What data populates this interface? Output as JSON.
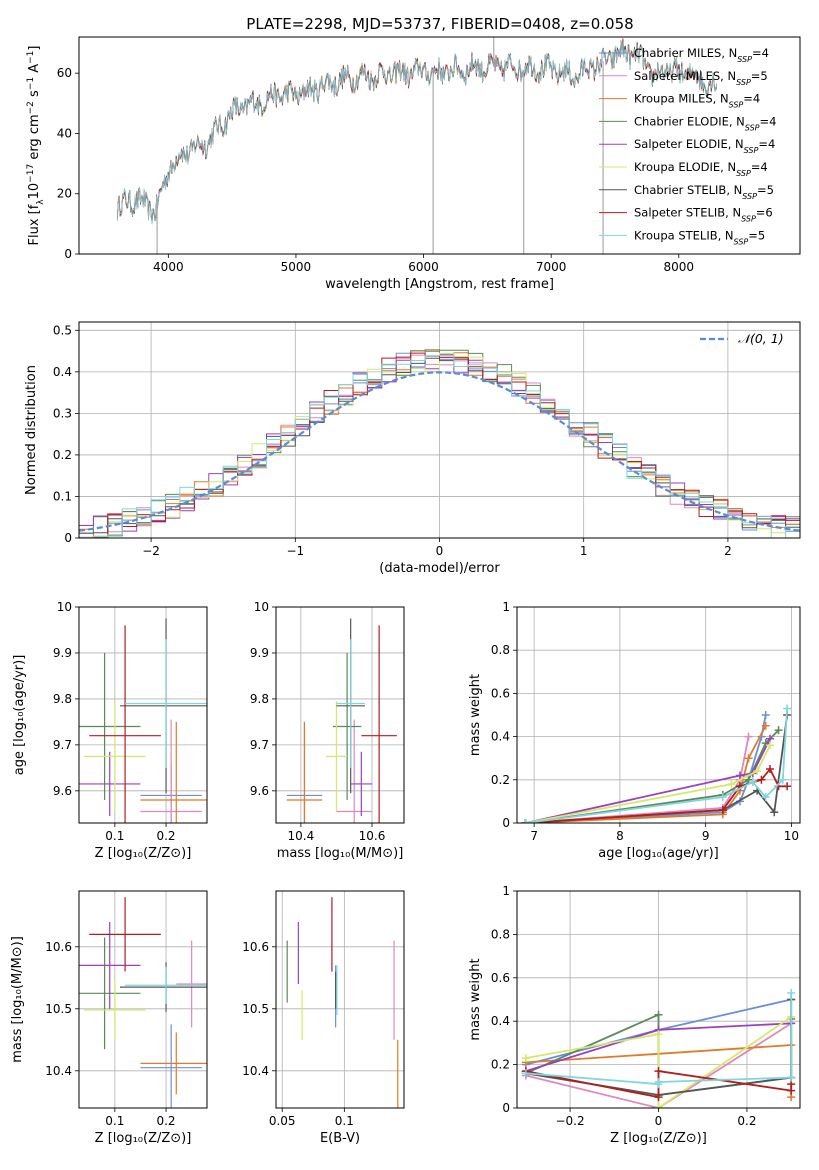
{
  "figure_title": "PLATE=2298, MJD=53737, FIBERID=0408, z=0.058",
  "colors": {
    "chabrier_miles": "#6b8fd6",
    "salpeter_miles": "#e088bd",
    "kroupa_miles": "#e07b2b",
    "chabrier_elodie": "#5a8a5a",
    "salpeter_elodie": "#9b3fc0",
    "kroupa_elodie": "#d4e86a",
    "chabrier_stelib": "#555555",
    "salpeter_stelib": "#b21e1e",
    "kroupa_stelib": "#7fd6e0",
    "normal": "#5b8ad8",
    "grid": "#b0b0b0"
  },
  "chart_data": [
    {
      "id": "spectrum",
      "type": "line",
      "xlabel": "wavelength [Angstrom, rest frame]",
      "ylabel": "Flux [f_λ10^{-17} erg cm^{-2} s^{-1} A^{-1}]",
      "xlim": [
        3300,
        8950
      ],
      "ylim": [
        0,
        72
      ],
      "xticks": [
        4000,
        5000,
        6000,
        7000,
        8000
      ],
      "yticks": [
        0,
        20,
        40,
        60
      ],
      "legend_position": "right",
      "legend": [
        {
          "base": "Chabrier MILES, N",
          "sub": "SSP",
          "tail": "=4",
          "color": "#6b8fd6"
        },
        {
          "base": "Salpeter MILES, N",
          "sub": "SSP",
          "tail": "=5",
          "color": "#e088bd"
        },
        {
          "base": "Kroupa MILES, N",
          "sub": "SSP",
          "tail": "=4",
          "color": "#e07b2b"
        },
        {
          "base": "Chabrier ELODIE, N",
          "sub": "SSP",
          "tail": "=4",
          "color": "#5a8a5a"
        },
        {
          "base": "Salpeter ELODIE, N",
          "sub": "SSP",
          "tail": "=4",
          "color": "#9b3fc0"
        },
        {
          "base": "Kroupa ELODIE, N",
          "sub": "SSP",
          "tail": "=4",
          "color": "#d4e86a"
        },
        {
          "base": "Chabrier STELIB, N",
          "sub": "SSP",
          "tail": "=5",
          "color": "#555555"
        },
        {
          "base": "Salpeter STELIB, N",
          "sub": "SSP",
          "tail": "=6",
          "color": "#b21e1e"
        },
        {
          "base": "Kroupa STELIB, N",
          "sub": "SSP",
          "tail": "=5",
          "color": "#7fd6e0"
        }
      ],
      "continuum": {
        "x": [
          3600,
          3700,
          3800,
          3900,
          4000,
          4100,
          4200,
          4300,
          4400,
          4500,
          4600,
          4700,
          4800,
          4900,
          5000,
          5100,
          5200,
          5300,
          5400,
          5500,
          5600,
          5700,
          5800,
          5900,
          6000,
          6100,
          6200,
          6300,
          6400,
          6500,
          6600,
          6700,
          6800,
          6900,
          7000,
          7100,
          7200,
          7300,
          7400,
          7500,
          7600,
          7700,
          7800,
          7900,
          8000,
          8100,
          8200,
          8300
        ],
        "y": [
          15,
          18,
          17,
          14,
          28,
          33,
          35,
          37,
          42,
          47,
          49,
          50,
          52,
          53,
          53,
          54,
          56,
          57,
          58,
          59,
          59,
          60,
          60,
          60,
          61,
          60,
          61,
          61,
          62,
          62,
          62,
          62,
          62,
          62,
          61,
          60,
          59,
          62,
          63,
          66,
          67,
          65,
          59,
          61,
          60,
          60,
          57,
          56
        ]
      },
      "emission_features": [
        {
          "x": 3912,
          "y0": 0,
          "y1": 18
        },
        {
          "x": 6075,
          "y0": 0,
          "y1": 61
        },
        {
          "x": 6550,
          "y0": 62,
          "y1": 75
        },
        {
          "x": 6785,
          "y0": 0,
          "y1": 61
        },
        {
          "x": 7407,
          "y0": 0,
          "y1": 64
        }
      ]
    },
    {
      "id": "residuals",
      "type": "histogram",
      "xlabel": "(data-model)/error",
      "ylabel": "Normed distribution",
      "xlim": [
        -2.5,
        2.5
      ],
      "ylim": [
        0,
        0.52
      ],
      "xticks": [
        -2,
        -1,
        0,
        1,
        2
      ],
      "yticks": [
        0.0,
        0.1,
        0.2,
        0.3,
        0.4,
        0.5
      ],
      "bin_width": 0.1,
      "bin_start": -2.5,
      "legend": "𝒩(0, 1)",
      "legend_position": "top-right",
      "normal_curve": {
        "mu": 0,
        "sigma": 1
      }
    },
    {
      "id": "age_vs_z",
      "type": "scatter",
      "xlabel": "Z [log₁₀(Z/Z⊙)]",
      "ylabel": "age  [log₁₀(age/yr)]",
      "xlim": [
        0.03,
        0.28
      ],
      "ylim": [
        9.53,
        10.0
      ],
      "xticks": [
        0.1,
        0.2
      ],
      "yticks": [
        9.6,
        9.7,
        9.8,
        9.9,
        10.0
      ],
      "points": [
        {
          "x": 0.21,
          "y": 9.59,
          "xerr": 0.06,
          "yerr": 0.07,
          "color": "#6b8fd6"
        },
        {
          "x": 0.21,
          "y": 9.555,
          "xerr": 0.06,
          "yerr": 0.2,
          "color": "#e088bd"
        },
        {
          "x": 0.22,
          "y": 9.58,
          "xerr": 0.07,
          "yerr": 0.17,
          "color": "#e07b2b"
        },
        {
          "x": 0.08,
          "y": 9.74,
          "xerr": 0.07,
          "yerr": 0.16,
          "color": "#5a8a5a"
        },
        {
          "x": 0.09,
          "y": 9.615,
          "xerr": 0.06,
          "yerr": 0.07,
          "color": "#9b3fc0"
        },
        {
          "x": 0.1,
          "y": 9.675,
          "xerr": 0.06,
          "yerr": 0.12,
          "color": "#d4e86a"
        },
        {
          "x": 0.2,
          "y": 9.785,
          "xerr": 0.09,
          "yerr": 0.19,
          "color": "#555555"
        },
        {
          "x": 0.12,
          "y": 9.72,
          "xerr": 0.07,
          "yerr": 0.24,
          "color": "#b21e1e"
        },
        {
          "x": 0.2,
          "y": 9.79,
          "xerr": 0.08,
          "yerr": 0.14,
          "color": "#7fd6e0"
        }
      ]
    },
    {
      "id": "age_vs_mass",
      "type": "scatter",
      "xlabel": "mass [log₁₀(M/M⊙)]",
      "ylabel": "",
      "xlim": [
        10.33,
        10.69
      ],
      "ylim": [
        9.53,
        10.0
      ],
      "xticks": [
        10.4,
        10.6
      ],
      "yticks": [
        9.6,
        9.7,
        9.8,
        9.9,
        10.0
      ],
      "points": [
        {
          "x": 10.41,
          "y": 9.59,
          "xerr": 0.05,
          "yerr": 0.16,
          "color": "#6b8fd6"
        },
        {
          "x": 10.55,
          "y": 9.555,
          "xerr": 0.05,
          "yerr": 0.2,
          "color": "#e088bd"
        },
        {
          "x": 10.41,
          "y": 9.58,
          "xerr": 0.05,
          "yerr": 0.17,
          "color": "#e07b2b"
        },
        {
          "x": 10.53,
          "y": 9.74,
          "xerr": 0.04,
          "yerr": 0.16,
          "color": "#5a8a5a"
        },
        {
          "x": 10.57,
          "y": 9.615,
          "xerr": 0.03,
          "yerr": 0.07,
          "color": "#9b3fc0"
        },
        {
          "x": 10.5,
          "y": 9.675,
          "xerr": 0.03,
          "yerr": 0.12,
          "color": "#d4e86a"
        },
        {
          "x": 10.54,
          "y": 9.785,
          "xerr": 0.04,
          "yerr": 0.19,
          "color": "#555555"
        },
        {
          "x": 10.62,
          "y": 9.72,
          "xerr": 0.05,
          "yerr": 0.24,
          "color": "#b21e1e"
        },
        {
          "x": 10.54,
          "y": 9.79,
          "xerr": 0.04,
          "yerr": 0.14,
          "color": "#7fd6e0"
        }
      ]
    },
    {
      "id": "mass_weight_vs_age",
      "type": "line",
      "xlabel": "age  [log₁₀(age/yr)]",
      "ylabel": "mass weight",
      "xlim": [
        6.8,
        10.1
      ],
      "ylim": [
        0,
        1.0
      ],
      "xticks": [
        7,
        8,
        9,
        10
      ],
      "yticks": [
        0.0,
        0.2,
        0.4,
        0.6,
        0.8,
        1.0
      ],
      "series": [
        {
          "color": "#6b8fd6",
          "x": [
            6.9,
            9.2,
            9.4,
            9.5,
            9.65,
            9.7
          ],
          "y": [
            0.0,
            0.05,
            0.1,
            0.2,
            0.4,
            0.5
          ]
        },
        {
          "color": "#e088bd",
          "x": [
            6.9,
            9.2,
            9.4,
            9.5
          ],
          "y": [
            0.0,
            0.07,
            0.2,
            0.4
          ]
        },
        {
          "color": "#e07b2b",
          "x": [
            6.9,
            9.2,
            9.4,
            9.5,
            9.7
          ],
          "y": [
            0.0,
            0.04,
            0.15,
            0.3,
            0.45
          ]
        },
        {
          "color": "#5a8a5a",
          "x": [
            6.9,
            9.2,
            9.5,
            9.7,
            9.85
          ],
          "y": [
            0.0,
            0.13,
            0.2,
            0.37,
            0.43
          ]
        },
        {
          "color": "#9b3fc0",
          "x": [
            6.9,
            9.4,
            9.55,
            9.75
          ],
          "y": [
            0.0,
            0.22,
            0.23,
            0.39
          ]
        },
        {
          "color": "#d4e86a",
          "x": [
            6.9,
            9.3,
            9.6,
            9.75
          ],
          "y": [
            0.0,
            0.18,
            0.24,
            0.36
          ]
        },
        {
          "color": "#555555",
          "x": [
            6.9,
            9.2,
            9.6,
            9.8,
            9.95
          ],
          "y": [
            0.0,
            0.06,
            0.15,
            0.05,
            0.5
          ]
        },
        {
          "color": "#b21e1e",
          "x": [
            6.9,
            9.2,
            9.4,
            9.65,
            9.75,
            9.85,
            9.95
          ],
          "y": [
            0.0,
            0.06,
            0.17,
            0.2,
            0.25,
            0.17,
            0.17
          ]
        },
        {
          "color": "#7fd6e0",
          "x": [
            6.9,
            9.2,
            9.55,
            9.7,
            9.9,
            9.95
          ],
          "y": [
            0.0,
            0.12,
            0.19,
            0.12,
            0.2,
            0.53
          ]
        }
      ]
    },
    {
      "id": "mass_vs_z",
      "type": "scatter",
      "xlabel": "Z [log₁₀(Z/Z⊙)]",
      "ylabel": "mass [log₁₀(M/M⊙)]",
      "xlim": [
        0.03,
        0.28
      ],
      "ylim": [
        10.34,
        10.69
      ],
      "xticks": [
        0.1,
        0.2
      ],
      "yticks": [
        10.4,
        10.5,
        10.6
      ],
      "points": [
        {
          "x": 0.21,
          "y": 10.405,
          "xerr": 0.06,
          "yerr": 0.07,
          "color": "#6b8fd6"
        },
        {
          "x": 0.25,
          "y": 10.54,
          "xerr": 0.03,
          "yerr": 0.07,
          "color": "#e088bd"
        },
        {
          "x": 0.22,
          "y": 10.412,
          "xerr": 0.07,
          "yerr": 0.05,
          "color": "#e07b2b"
        },
        {
          "x": 0.08,
          "y": 10.525,
          "xerr": 0.07,
          "yerr": 0.09,
          "color": "#5a8a5a"
        },
        {
          "x": 0.09,
          "y": 10.57,
          "xerr": 0.06,
          "yerr": 0.07,
          "color": "#9b3fc0"
        },
        {
          "x": 0.1,
          "y": 10.498,
          "xerr": 0.06,
          "yerr": 0.05,
          "color": "#d4e86a"
        },
        {
          "x": 0.2,
          "y": 10.535,
          "xerr": 0.09,
          "yerr": 0.04,
          "color": "#555555"
        },
        {
          "x": 0.12,
          "y": 10.62,
          "xerr": 0.07,
          "yerr": 0.06,
          "color": "#b21e1e"
        },
        {
          "x": 0.2,
          "y": 10.538,
          "xerr": 0.08,
          "yerr": 0.03,
          "color": "#7fd6e0"
        }
      ]
    },
    {
      "id": "mass_vs_ebv",
      "type": "scatter",
      "xlabel": "E(B-V)",
      "ylabel": "",
      "xlim": [
        0.045,
        0.148
      ],
      "ylim": [
        10.34,
        10.69
      ],
      "xticks": [
        0.05,
        0.1
      ],
      "yticks": [
        10.4,
        10.5,
        10.6
      ],
      "points": [
        {
          "x": 0.093,
          "y": 10.52,
          "xerr": 0,
          "yerr": 0.05,
          "color": "#6b8fd6"
        },
        {
          "x": 0.14,
          "y": 10.53,
          "xerr": 0,
          "yerr": 0.08,
          "color": "#e088bd"
        },
        {
          "x": 0.143,
          "y": 10.39,
          "xerr": 0,
          "yerr": 0.06,
          "color": "#e07b2b"
        },
        {
          "x": 0.054,
          "y": 10.56,
          "xerr": 0,
          "yerr": 0.05,
          "color": "#5a8a5a"
        },
        {
          "x": 0.063,
          "y": 10.59,
          "xerr": 0,
          "yerr": 0.05,
          "color": "#9b3fc0"
        },
        {
          "x": 0.066,
          "y": 10.49,
          "xerr": 0,
          "yerr": 0.04,
          "color": "#d4e86a"
        },
        {
          "x": 0.093,
          "y": 10.53,
          "xerr": 0,
          "yerr": 0.03,
          "color": "#555555"
        },
        {
          "x": 0.09,
          "y": 10.62,
          "xerr": 0,
          "yerr": 0.06,
          "color": "#b21e1e"
        },
        {
          "x": 0.094,
          "y": 10.53,
          "xerr": 0,
          "yerr": 0.04,
          "color": "#7fd6e0"
        }
      ]
    },
    {
      "id": "mass_weight_vs_z",
      "type": "line",
      "xlabel": "Z [log₁₀(Z/Z⊙)]",
      "ylabel": "mass weight",
      "xlim": [
        -0.32,
        0.32
      ],
      "ylim": [
        0,
        1.0
      ],
      "xticks": [
        -0.2,
        0.0,
        0.2
      ],
      "yticks": [
        0.0,
        0.2,
        0.4,
        0.6,
        0.8,
        1.0
      ],
      "series": [
        {
          "color": "#6b8fd6",
          "x": [
            -0.3,
            0.0,
            0.3
          ],
          "y": [
            0.2,
            0.36,
            0.5
          ]
        },
        {
          "color": "#e088bd",
          "x": [
            -0.3,
            0.0,
            0.3
          ],
          "y": [
            0.15,
            0.0,
            0.39
          ]
        },
        {
          "color": "#e07b2b",
          "x": [
            -0.3,
            0.0,
            0.3,
            0.3
          ],
          "y": [
            0.21,
            0.25,
            0.29,
            0.05
          ]
        },
        {
          "color": "#5a8a5a",
          "x": [
            -0.3,
            0.0,
            0.0,
            0.3,
            0.3
          ],
          "y": [
            0.16,
            0.43,
            0.06,
            0.14,
            0.41
          ]
        },
        {
          "color": "#9b3fc0",
          "x": [
            -0.3,
            0.0,
            0.3
          ],
          "y": [
            0.17,
            0.36,
            0.39
          ]
        },
        {
          "color": "#d4e86a",
          "x": [
            -0.3,
            0.0,
            0.0,
            0.3
          ],
          "y": [
            0.23,
            0.34,
            0.0,
            0.42
          ]
        },
        {
          "color": "#555555",
          "x": [
            -0.3,
            0.0,
            0.3,
            0.3
          ],
          "y": [
            0.16,
            0.06,
            0.14,
            0.5
          ]
        },
        {
          "color": "#b21e1e",
          "x": [
            -0.3,
            0.0,
            0.0,
            0.3,
            0.3
          ],
          "y": [
            0.17,
            0.05,
            0.17,
            0.08,
            0.11
          ]
        },
        {
          "color": "#7fd6e0",
          "x": [
            -0.3,
            0.0,
            0.0,
            0.3,
            0.3
          ],
          "y": [
            0.16,
            0.11,
            0.12,
            0.14,
            0.53
          ]
        }
      ]
    }
  ]
}
